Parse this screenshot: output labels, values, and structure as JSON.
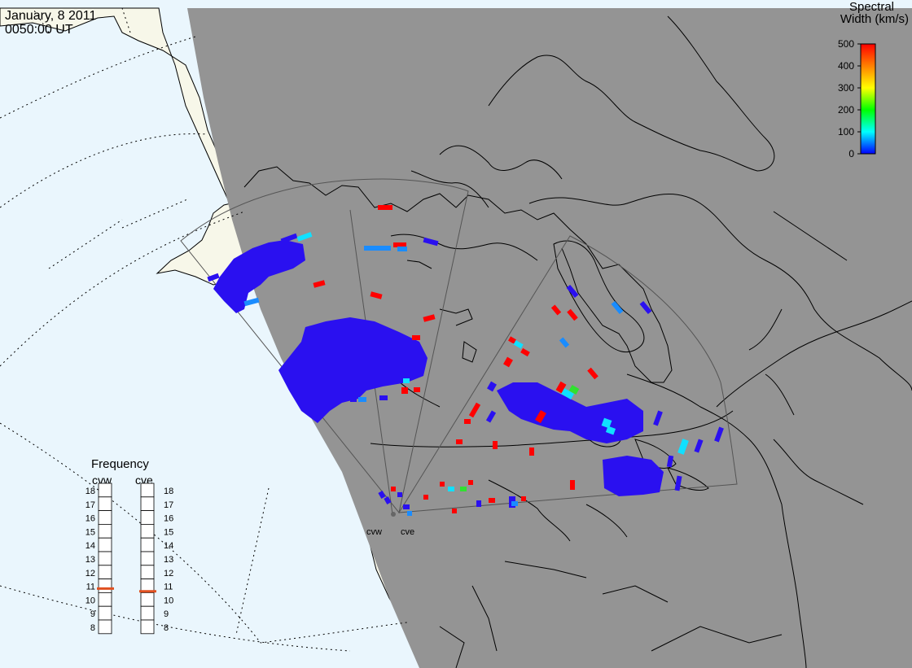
{
  "header": {
    "date": "January, 8 2011",
    "time": "0050:00 UT"
  },
  "colorbar": {
    "title_line1": "Spectral",
    "title_line2": "Width (km/s)",
    "ticks": [
      "500",
      "400",
      "300",
      "200",
      "100",
      "0"
    ],
    "gradient": [
      "#ff0000",
      "#ff8000",
      "#ffff00",
      "#00ff00",
      "#00ffff",
      "#0000ff"
    ]
  },
  "frequency": {
    "title": "Frequency",
    "radars": [
      {
        "name": "cvw",
        "value": 10.8
      },
      {
        "name": "cve",
        "value": 10.6
      }
    ],
    "scale": [
      "18",
      "17",
      "16",
      "15",
      "14",
      "13",
      "12",
      "11",
      "10",
      "9",
      "8"
    ],
    "marker_color": "#e05020"
  },
  "sites": {
    "west": "cvw",
    "east": "cve"
  },
  "colors": {
    "night": "#949494",
    "ocean": "#eaf6fd",
    "land_day": "#f7f7e9",
    "low_width": "#2a10f0",
    "mid_width": "#1a8cff",
    "cyan_width": "#10e0ff",
    "high_width": "#ff0000"
  }
}
